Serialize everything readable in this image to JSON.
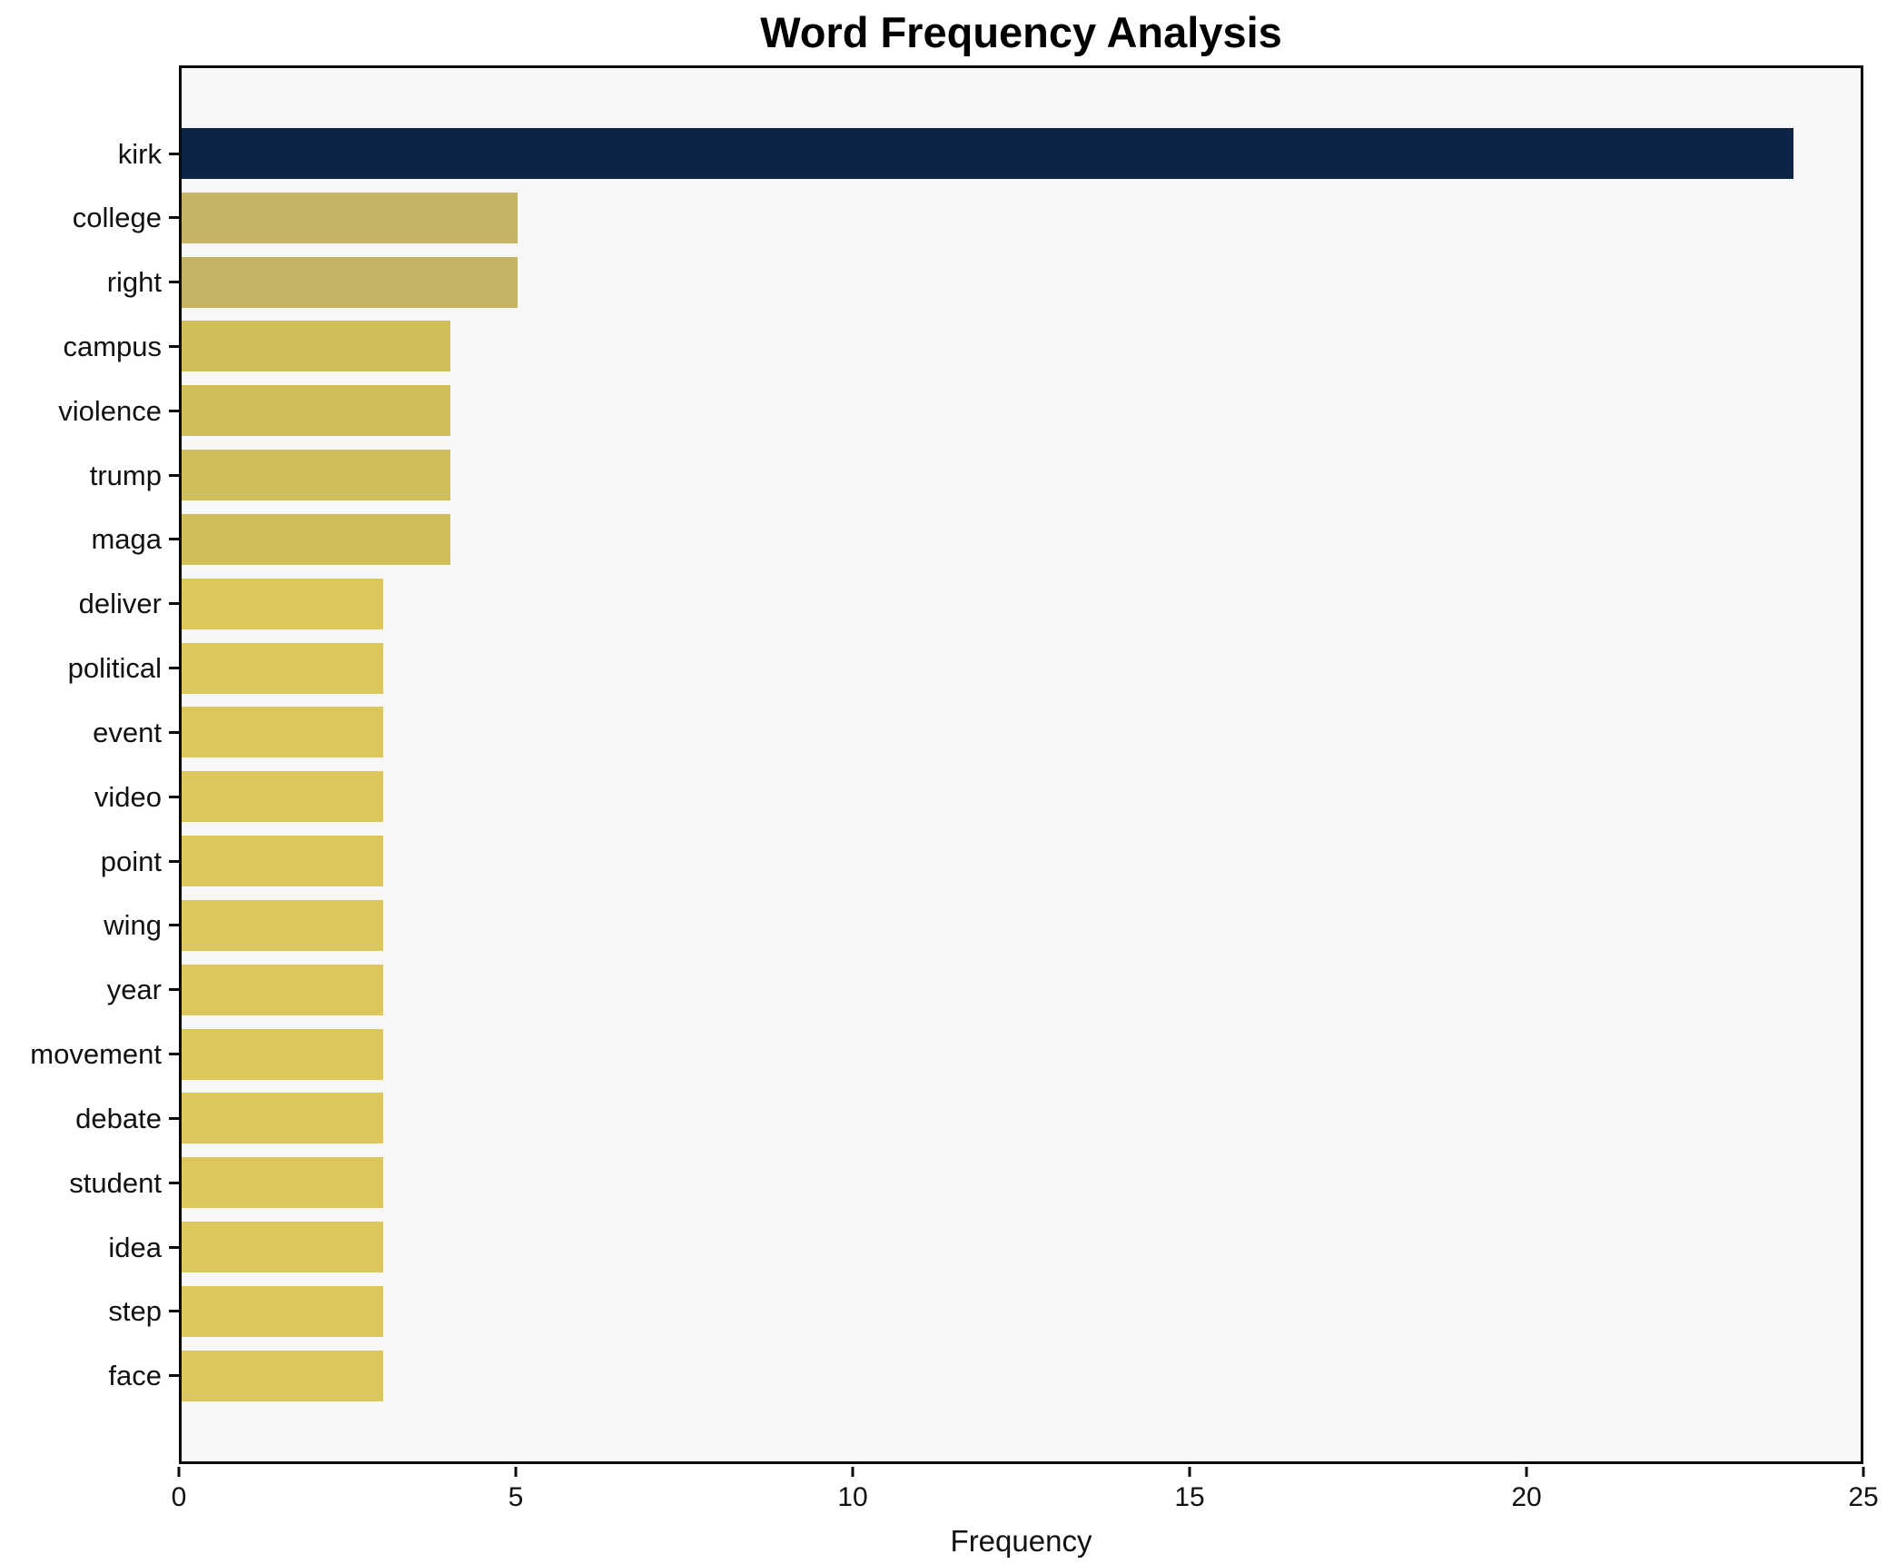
{
  "title": "Word Frequency Analysis",
  "chart_data": {
    "type": "bar",
    "orientation": "horizontal",
    "title": "Word Frequency Analysis",
    "xlabel": "Frequency",
    "ylabel": "",
    "xlim": [
      0,
      25
    ],
    "x_ticks": [
      0,
      5,
      10,
      15,
      20,
      25
    ],
    "grid": false,
    "legend": false,
    "colors": {
      "page_background": "#ffffff",
      "plot_background": "#f7f7f7",
      "axis": "#0a0a0a",
      "text": "#111111",
      "bar_navy": "#0c2446",
      "bar_gold_dark": "#c5b464",
      "bar_gold_mid": "#d0bc59",
      "bar_gold_light": "#dcc75c"
    },
    "categories": [
      "kirk",
      "college",
      "right",
      "campus",
      "violence",
      "trump",
      "maga",
      "deliver",
      "political",
      "event",
      "video",
      "point",
      "wing",
      "year",
      "movement",
      "debate",
      "student",
      "idea",
      "step",
      "face"
    ],
    "values": [
      24,
      5,
      5,
      4,
      4,
      4,
      4,
      3,
      3,
      3,
      3,
      3,
      3,
      3,
      3,
      3,
      3,
      3,
      3,
      3
    ],
    "bar_colors": [
      "#0c2446",
      "#c5b464",
      "#c5b464",
      "#d0bc59",
      "#d0bc59",
      "#d0bc59",
      "#d0bc59",
      "#dcc75c",
      "#dcc75c",
      "#dcc75c",
      "#dcc75c",
      "#dcc75c",
      "#dcc75c",
      "#dcc75c",
      "#dcc75c",
      "#dcc75c",
      "#dcc75c",
      "#dcc75c",
      "#dcc75c",
      "#dcc75c"
    ]
  }
}
